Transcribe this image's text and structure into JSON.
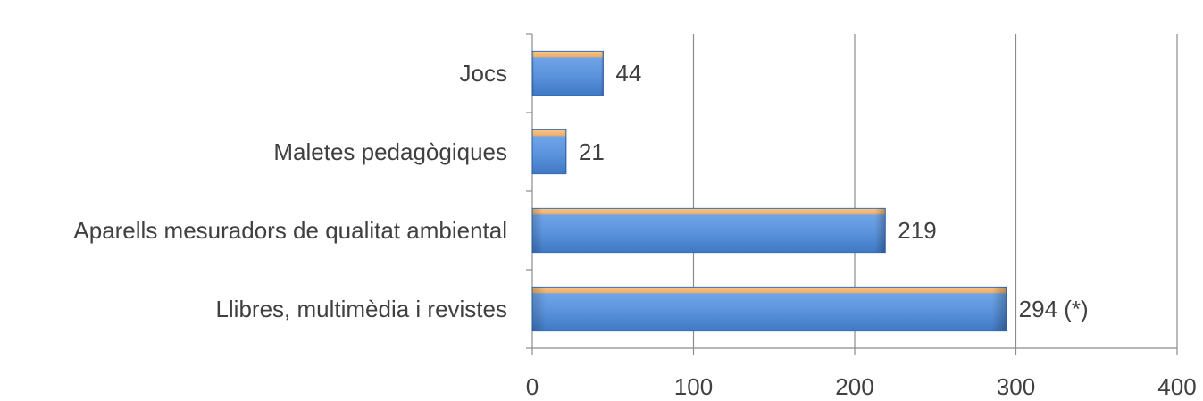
{
  "chart_data": {
    "type": "bar",
    "orientation": "horizontal",
    "categories": [
      "Jocs",
      "Maletes pedagògiques",
      "Aparells mesuradors de qualitat ambiental",
      "Llibres, multimèdia i revistes"
    ],
    "values": [
      44,
      21,
      219,
      294
    ],
    "data_labels": [
      "44",
      "21",
      "219",
      "294 (*)"
    ],
    "xlim": [
      0,
      400
    ],
    "x_ticks": [
      0,
      100,
      200,
      300,
      400
    ],
    "x_tick_labels": [
      "0",
      "100",
      "200",
      "300",
      "400"
    ],
    "title": "",
    "xlabel": "",
    "ylabel": "",
    "grid": "vertical",
    "legend": "none",
    "colors": {
      "bar_fill": "#5b93dc",
      "bar_edge": "#3a6fb8",
      "bar_top_highlight": "#f6c58a",
      "grid": "#8c8c8c",
      "text": "#404040"
    }
  }
}
